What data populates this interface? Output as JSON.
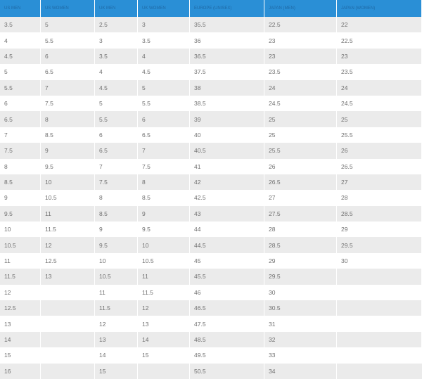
{
  "table": {
    "header": [
      "US MEN",
      "US WOMEN",
      "UK MEN",
      "UK WOMEN",
      "EUROPE (UNISEX)",
      "JAPAN (MEN)",
      "JAPAN (WOMEN)"
    ],
    "rows": [
      [
        3.5,
        5,
        2.5,
        3,
        35.5,
        22.5,
        22
      ],
      [
        4,
        5.5,
        3,
        3.5,
        36,
        23,
        22.5
      ],
      [
        4.5,
        6,
        3.5,
        4,
        36.5,
        23,
        23
      ],
      [
        5,
        6.5,
        4,
        4.5,
        37.5,
        23.5,
        23.5
      ],
      [
        5.5,
        7,
        4.5,
        5,
        38,
        24,
        24
      ],
      [
        6,
        7.5,
        5,
        5.5,
        38.5,
        24.5,
        24.5
      ],
      [
        6.5,
        8,
        5.5,
        6,
        39,
        25,
        25
      ],
      [
        7,
        8.5,
        6,
        6.5,
        40,
        25,
        25.5
      ],
      [
        7.5,
        9,
        6.5,
        7,
        40.5,
        25.5,
        26
      ],
      [
        8,
        9.5,
        7,
        7.5,
        41,
        26,
        26.5
      ],
      [
        8.5,
        10,
        7.5,
        8,
        42,
        26.5,
        27
      ],
      [
        9,
        10.5,
        8,
        8.5,
        42.5,
        27,
        28
      ],
      [
        9.5,
        11,
        8.5,
        9,
        43,
        27.5,
        28.5
      ],
      [
        10,
        11.5,
        9,
        9.5,
        44,
        28,
        29
      ],
      [
        10.5,
        12,
        9.5,
        10,
        44.5,
        28.5,
        29.5
      ],
      [
        11,
        12.5,
        10,
        10.5,
        45,
        29,
        30
      ],
      [
        11.5,
        13,
        10.5,
        11,
        45.5,
        29.5,
        null
      ],
      [
        12,
        null,
        11,
        11.5,
        46,
        30,
        null
      ],
      [
        12.5,
        null,
        11.5,
        12,
        46.5,
        30.5,
        null
      ],
      [
        13,
        null,
        12,
        13,
        47.5,
        31,
        null
      ],
      [
        14,
        null,
        13,
        14,
        48.5,
        32,
        null
      ],
      [
        15,
        null,
        14,
        15,
        49.5,
        33,
        null
      ],
      [
        16,
        null,
        15,
        null,
        50.5,
        34,
        null
      ]
    ]
  }
}
